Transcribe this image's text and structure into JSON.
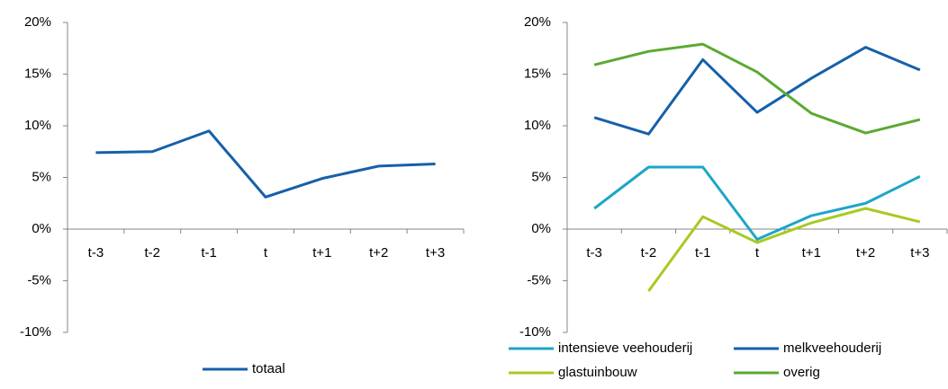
{
  "chart_data": [
    {
      "type": "line",
      "categories": [
        "t-3",
        "t-2",
        "t-1",
        "t",
        "t+1",
        "t+2",
        "t+3"
      ],
      "ylim": [
        -10,
        20
      ],
      "yticks": [
        {
          "value": -10,
          "label": "-10%"
        },
        {
          "value": -5,
          "label": "-5%"
        },
        {
          "value": 0,
          "label": "0%"
        },
        {
          "value": 5,
          "label": "5%"
        },
        {
          "value": 10,
          "label": "10%"
        },
        {
          "value": 15,
          "label": "15%"
        },
        {
          "value": 20,
          "label": "20%"
        }
      ],
      "series": [
        {
          "name": "totaal",
          "color": "#1560aa",
          "values": [
            7.4,
            7.5,
            9.5,
            3.1,
            4.9,
            6.1,
            6.3
          ]
        }
      ]
    },
    {
      "type": "line",
      "categories": [
        "t-3",
        "t-2",
        "t-1",
        "t",
        "t+1",
        "t+2",
        "t+3"
      ],
      "ylim": [
        -10,
        20
      ],
      "yticks": [
        {
          "value": -10,
          "label": "-10%"
        },
        {
          "value": -5,
          "label": "-5%"
        },
        {
          "value": 0,
          "label": "0%"
        },
        {
          "value": 5,
          "label": "5%"
        },
        {
          "value": 10,
          "label": "10%"
        },
        {
          "value": 15,
          "label": "15%"
        },
        {
          "value": 20,
          "label": "20%"
        }
      ],
      "series": [
        {
          "name": "intensieve veehouderij",
          "color": "#1ea5c8",
          "values": [
            2.0,
            6.0,
            6.0,
            -1.0,
            1.3,
            2.5,
            5.1
          ]
        },
        {
          "name": "melkveehouderij",
          "color": "#1560aa",
          "values": [
            10.8,
            9.2,
            16.4,
            11.3,
            14.6,
            17.6,
            15.4
          ]
        },
        {
          "name": "glastuinbouw",
          "color": "#a9c923",
          "values": [
            null,
            -6.0,
            1.2,
            -1.3,
            0.6,
            2.0,
            0.7
          ]
        },
        {
          "name": "overig",
          "color": "#5aaa32",
          "values": [
            15.9,
            17.2,
            17.9,
            15.2,
            11.2,
            9.3,
            10.6
          ]
        }
      ]
    }
  ]
}
